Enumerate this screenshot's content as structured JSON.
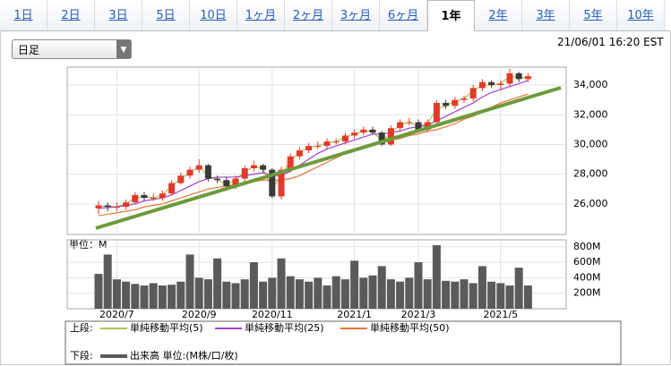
{
  "tabs": [
    {
      "label": "1日"
    },
    {
      "label": "2日"
    },
    {
      "label": "3日"
    },
    {
      "label": "5日"
    },
    {
      "label": "10日"
    },
    {
      "label": "1ヶ月"
    },
    {
      "label": "2ヶ月"
    },
    {
      "label": "3ヶ月"
    },
    {
      "label": "6ヶ月"
    },
    {
      "label": "1年",
      "active": true
    },
    {
      "label": "2年"
    },
    {
      "label": "3年"
    },
    {
      "label": "5年"
    },
    {
      "label": "10年"
    }
  ],
  "period_select": "日足",
  "timestamp": "21/06/01 16:20 EST",
  "price_chart": {
    "type": "candlestick",
    "categories": [
      null,
      null,
      "2020/7",
      null,
      null,
      null,
      null,
      null,
      null,
      null,
      null,
      "2020/9",
      null,
      null,
      null,
      null,
      null,
      null,
      null,
      "2020/11",
      null,
      null,
      null,
      null,
      null,
      null,
      null,
      null,
      "2021/1",
      null,
      null,
      null,
      null,
      null,
      null,
      "2021/3",
      null,
      null,
      null,
      null,
      null,
      null,
      null,
      null,
      "2021/5",
      null,
      null,
      null
    ],
    "open": [
      25700,
      25900,
      25800,
      25800,
      26100,
      26600,
      26400,
      26400,
      26700,
      27400,
      27900,
      28300,
      28600,
      27700,
      27600,
      27200,
      27700,
      28400,
      28600,
      28300,
      26500,
      28300,
      29200,
      29600,
      29900,
      29900,
      30200,
      30200,
      30600,
      30800,
      31000,
      30800,
      30000,
      31100,
      31500,
      31500,
      31000,
      31500,
      32800,
      32600,
      33000,
      33100,
      33800,
      34200,
      34000,
      34100,
      34800,
      34400
    ],
    "high": [
      26200,
      26100,
      26100,
      26300,
      26800,
      26800,
      26700,
      26900,
      27600,
      28100,
      28500,
      29000,
      28700,
      27900,
      27800,
      27900,
      28600,
      28900,
      28700,
      28400,
      28500,
      29400,
      29800,
      30100,
      30200,
      30400,
      30400,
      30800,
      31000,
      31200,
      31200,
      30900,
      31300,
      31700,
      31800,
      31700,
      31700,
      33000,
      33000,
      33200,
      33300,
      34000,
      34400,
      34300,
      34300,
      35100,
      34900,
      34800
    ],
    "low": [
      25300,
      25500,
      25500,
      25600,
      26000,
      26200,
      26200,
      26200,
      26600,
      27300,
      27700,
      28100,
      27500,
      27400,
      27000,
      27000,
      27500,
      28200,
      28100,
      26400,
      26300,
      28100,
      29000,
      29400,
      29700,
      29700,
      30000,
      30000,
      30400,
      30600,
      30700,
      29900,
      29900,
      30900,
      31300,
      30800,
      30800,
      31400,
      32400,
      32400,
      32800,
      32900,
      33600,
      33800,
      33700,
      33900,
      34200,
      34200
    ],
    "close": [
      25900,
      25800,
      25800,
      26100,
      26600,
      26400,
      26400,
      26700,
      27400,
      27900,
      28300,
      28600,
      27700,
      27600,
      27200,
      27700,
      28400,
      28600,
      28300,
      26500,
      28300,
      29200,
      29600,
      29900,
      29900,
      30200,
      30200,
      30600,
      30800,
      31000,
      30800,
      30000,
      31100,
      31500,
      31500,
      31000,
      31500,
      32800,
      32600,
      33000,
      33100,
      33800,
      34200,
      34000,
      34100,
      34800,
      34400,
      34600
    ],
    "up_color": "#e23a2a",
    "down_color": "#3a3a3a",
    "series": [
      {
        "name": "単純移動平均(5)",
        "color": "#a8c64a",
        "values": [
          25850,
          25850,
          25800,
          26000,
          26400,
          26500,
          26400,
          26600,
          27200,
          27700,
          28100,
          28500,
          27900,
          27600,
          27300,
          27600,
          28200,
          28500,
          28400,
          27000,
          27900,
          28900,
          29500,
          29800,
          29900,
          30100,
          30200,
          30500,
          30700,
          30900,
          30900,
          30200,
          30800,
          31300,
          31500,
          31200,
          31400,
          32400,
          32600,
          32900,
          33100,
          33600,
          34000,
          34000,
          34100,
          34600,
          34500,
          34500
        ]
      },
      {
        "name": "単純移動平均(25)",
        "color": "#a040c8",
        "values": [
          25700,
          25750,
          25800,
          25900,
          26000,
          26200,
          26300,
          26400,
          26600,
          26900,
          27200,
          27500,
          27700,
          27800,
          27800,
          27800,
          27900,
          28000,
          28100,
          27900,
          27900,
          28200,
          28600,
          29000,
          29400,
          29700,
          29900,
          30100,
          30300,
          30500,
          30700,
          30700,
          30800,
          30900,
          31100,
          31200,
          31300,
          31600,
          31900,
          32200,
          32500,
          32800,
          33200,
          33500,
          33700,
          33900,
          34100,
          34300
        ]
      },
      {
        "name": "単純移動平均(50)",
        "color": "#e8743a",
        "values": [
          25200,
          25300,
          25400,
          25500,
          25600,
          25800,
          25900,
          26000,
          26200,
          26400,
          26600,
          26800,
          27000,
          27100,
          27200,
          27300,
          27400,
          27500,
          27600,
          27600,
          27600,
          27700,
          27900,
          28200,
          28500,
          28800,
          29100,
          29400,
          29600,
          29800,
          30000,
          30100,
          30300,
          30400,
          30600,
          30700,
          30900,
          31000,
          31200,
          31400,
          31700,
          31900,
          32200,
          32500,
          32800,
          33000,
          33200,
          33400
        ]
      }
    ],
    "ylim": [
      23940,
      35210
    ],
    "yticks": [
      {
        "value": 26000,
        "label": "26,000"
      },
      {
        "value": 28000,
        "label": "28,000"
      },
      {
        "value": 30000,
        "label": "30,000"
      },
      {
        "value": 32000,
        "label": "32,000"
      },
      {
        "value": 34000,
        "label": "34,000"
      }
    ],
    "grid": true
  },
  "volume_chart": {
    "type": "bar",
    "unit_label": "単位：M",
    "color": "#5a5a5a",
    "values": [
      450,
      700,
      380,
      350,
      320,
      300,
      330,
      300,
      310,
      350,
      700,
      400,
      380,
      650,
      350,
      330,
      380,
      600,
      350,
      400,
      650,
      420,
      380,
      350,
      400,
      300,
      420,
      380,
      620,
      400,
      430,
      550,
      380,
      350,
      400,
      600,
      380,
      820,
      360,
      350,
      380,
      330,
      550,
      350,
      330,
      300,
      530,
      300
    ],
    "ylim": [
      0,
      890
    ],
    "yticks": [
      {
        "value": 200,
        "label": "200M"
      },
      {
        "value": 400,
        "label": "400M"
      },
      {
        "value": 600,
        "label": "600M"
      },
      {
        "value": 800,
        "label": "800M"
      }
    ],
    "grid": true
  },
  "legend": {
    "upper_label": "上段:",
    "lower_label": "下段:",
    "lower_text": "出来高 単位:(M株/口/枚)"
  }
}
